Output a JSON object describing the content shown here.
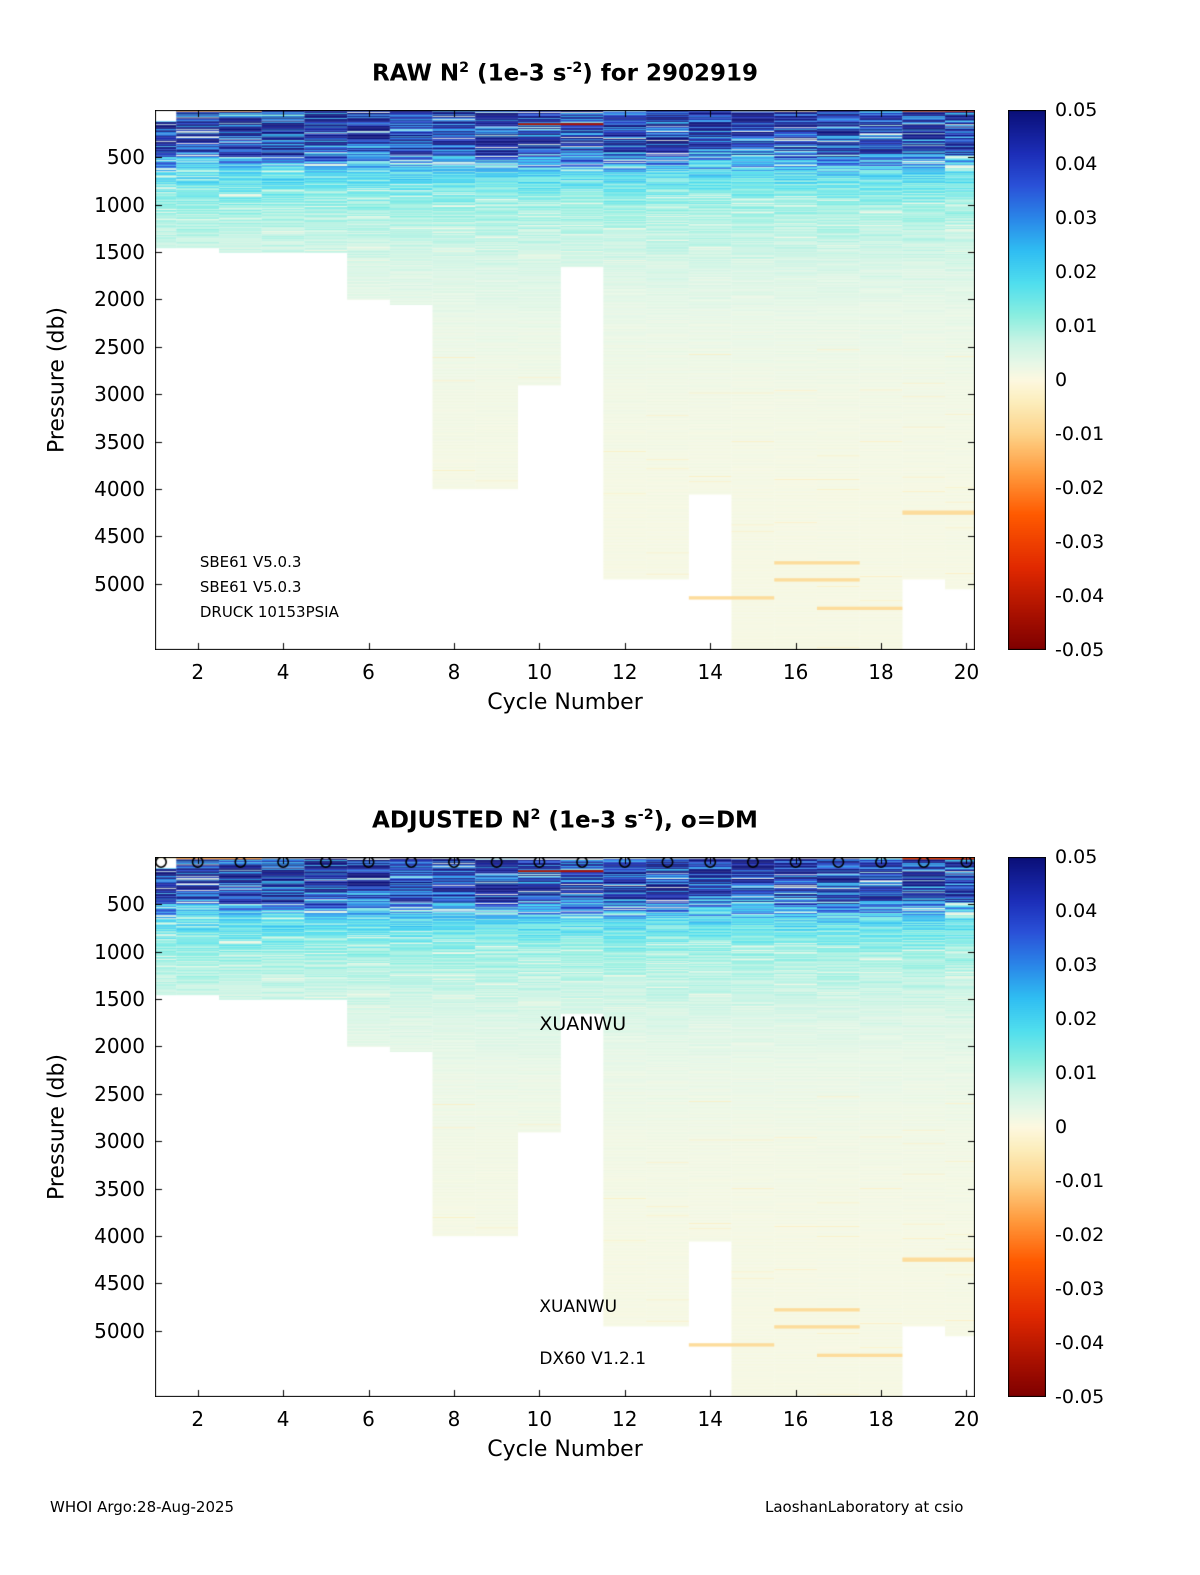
{
  "figure": {
    "footer_left": "WHOI Argo:28-Aug-2025",
    "footer_right": "LaoshanLaboratory at csio"
  },
  "chart_data": {
    "type": "heatmap",
    "float_id": "2902919",
    "value_range": [
      -0.05,
      0.05
    ],
    "colorbar_ticks": [
      "0.05",
      "0.04",
      "0.03",
      "0.02",
      "0.01",
      "0",
      "-0.01",
      "-0.02",
      "-0.03",
      "-0.04",
      "-0.05"
    ],
    "colormap_stops": [
      [
        0.0,
        "#7f0000"
      ],
      [
        0.06,
        "#a50f00"
      ],
      [
        0.15,
        "#e02800"
      ],
      [
        0.25,
        "#ff5a00"
      ],
      [
        0.33,
        "#ff9d40"
      ],
      [
        0.4,
        "#fdd38a"
      ],
      [
        0.46,
        "#fceebd"
      ],
      [
        0.5,
        "#fdf8e0"
      ],
      [
        0.53,
        "#e8f7e6"
      ],
      [
        0.57,
        "#c9f4e4"
      ],
      [
        0.62,
        "#8aeee0"
      ],
      [
        0.68,
        "#4fdeee"
      ],
      [
        0.74,
        "#2fbdf2"
      ],
      [
        0.8,
        "#2a86e8"
      ],
      [
        0.86,
        "#2a52d8"
      ],
      [
        0.92,
        "#1c2eb8"
      ],
      [
        1.0,
        "#0a0f78"
      ]
    ],
    "x": {
      "label": "Cycle Number",
      "ticks": [
        2,
        4,
        6,
        8,
        10,
        12,
        14,
        16,
        18,
        20
      ],
      "lim": [
        1,
        20.2
      ]
    },
    "y": {
      "label": "Pressure (db)",
      "ticks": [
        500,
        1000,
        1500,
        2000,
        2500,
        3000,
        3500,
        4000,
        4500,
        5000
      ],
      "lim": [
        0,
        5700
      ],
      "reversed": true
    },
    "x_values": [
      1,
      2,
      3,
      4,
      5,
      6,
      7,
      8,
      9,
      10,
      11,
      12,
      13,
      14,
      15,
      16,
      17,
      18,
      19,
      20
    ],
    "profile": {
      "pressure": [
        0,
        60,
        150,
        400,
        520,
        650,
        800,
        1000,
        1300,
        1700,
        2200,
        3000,
        4000,
        5700
      ],
      "n2": [
        0.035,
        0.046,
        0.047,
        0.045,
        0.03,
        0.02,
        0.015,
        0.011,
        0.008,
        0.005,
        0.003,
        0.0018,
        0.0012,
        0.001
      ]
    },
    "noise_seed": 3,
    "panels": [
      {
        "name": "raw",
        "title_parts": [
          "RAW N",
          "2",
          " (1e-3 s",
          "-2",
          ") for 2902919"
        ],
        "max_pressure_per_cycle": [
          1450,
          1450,
          1500,
          1500,
          1500,
          2000,
          2050,
          4000,
          4000,
          2900,
          1650,
          4950,
          4950,
          4050,
          5700,
          5700,
          5700,
          5700,
          4950,
          5050
        ],
        "min_pressure_per_cycle": [
          120,
          0,
          0,
          0,
          0,
          0,
          0,
          0,
          0,
          0,
          0,
          0,
          0,
          0,
          0,
          0,
          0,
          0,
          0,
          0
        ],
        "streaks": [
          {
            "c0": 10,
            "c1": 11,
            "p": 150,
            "v": -0.042,
            "th": 20
          },
          {
            "c0": 2,
            "c1": 3,
            "p": 10,
            "v": -0.015,
            "th": 14
          },
          {
            "c0": 19,
            "c1": 20,
            "p": 8,
            "v": -0.03,
            "th": 12
          },
          {
            "c0": 16,
            "c1": 16,
            "p": 8,
            "v": -0.008,
            "th": 12
          },
          {
            "c0": 3,
            "c1": 4,
            "p": 55,
            "v": 0.012,
            "th": 14
          },
          {
            "c0": 19,
            "c1": 20,
            "p": 4250,
            "v": -0.008,
            "th": 45
          },
          {
            "c0": 16,
            "c1": 17,
            "p": 4780,
            "v": -0.008,
            "th": 35
          },
          {
            "c0": 16,
            "c1": 17,
            "p": 4960,
            "v": -0.008,
            "th": 35
          },
          {
            "c0": 14,
            "c1": 15,
            "p": 5150,
            "v": -0.008,
            "th": 35
          },
          {
            "c0": 17,
            "c1": 18,
            "p": 5260,
            "v": -0.008,
            "th": 35
          }
        ],
        "annotations": [
          {
            "text": "SBE61 V5.0.3",
            "cycle": 2.05,
            "pressure": 4800,
            "size": 15
          },
          {
            "text": "SBE61 V5.0.3",
            "cycle": 2.05,
            "pressure": 5060,
            "size": 15
          },
          {
            "text": "DRUCK 10153PSIA",
            "cycle": 2.05,
            "pressure": 5320,
            "size": 15
          }
        ],
        "top_markers": false
      },
      {
        "name": "adjusted",
        "title_parts": [
          "ADJUSTED N",
          "2",
          " (1e-3 s",
          "-2",
          "), o=DM"
        ],
        "max_pressure_per_cycle": [
          1450,
          1450,
          1500,
          1500,
          1500,
          2000,
          2050,
          4000,
          4000,
          2900,
          1650,
          4950,
          4950,
          4050,
          5700,
          5700,
          5700,
          5700,
          4950,
          5050
        ],
        "min_pressure_per_cycle": [
          120,
          0,
          0,
          0,
          0,
          0,
          0,
          0,
          0,
          0,
          0,
          0,
          0,
          0,
          0,
          0,
          0,
          0,
          0,
          0
        ],
        "streaks": [
          {
            "c0": 1,
            "c1": 20,
            "p": 6,
            "v": -0.004,
            "th": 10
          },
          {
            "c0": 10,
            "c1": 11,
            "p": 150,
            "v": -0.042,
            "th": 20
          },
          {
            "c0": 2,
            "c1": 3,
            "p": 14,
            "v": -0.015,
            "th": 10
          },
          {
            "c0": 19,
            "c1": 20,
            "p": 14,
            "v": -0.03,
            "th": 10
          },
          {
            "c0": 19,
            "c1": 20,
            "p": 4250,
            "v": -0.008,
            "th": 45
          },
          {
            "c0": 16,
            "c1": 17,
            "p": 4780,
            "v": -0.008,
            "th": 35
          },
          {
            "c0": 16,
            "c1": 17,
            "p": 4960,
            "v": -0.008,
            "th": 35
          },
          {
            "c0": 14,
            "c1": 15,
            "p": 5150,
            "v": -0.008,
            "th": 35
          },
          {
            "c0": 17,
            "c1": 18,
            "p": 5260,
            "v": -0.008,
            "th": 35
          }
        ],
        "annotations": [
          {
            "text": "XUANWU",
            "cycle": 10,
            "pressure": 1800,
            "size": 19
          },
          {
            "text": "XUANWU",
            "cycle": 10,
            "pressure": 4780,
            "size": 17
          },
          {
            "text": "DX60 V1.2.1",
            "cycle": 10,
            "pressure": 5330,
            "size": 17
          }
        ],
        "top_markers": true
      }
    ]
  }
}
